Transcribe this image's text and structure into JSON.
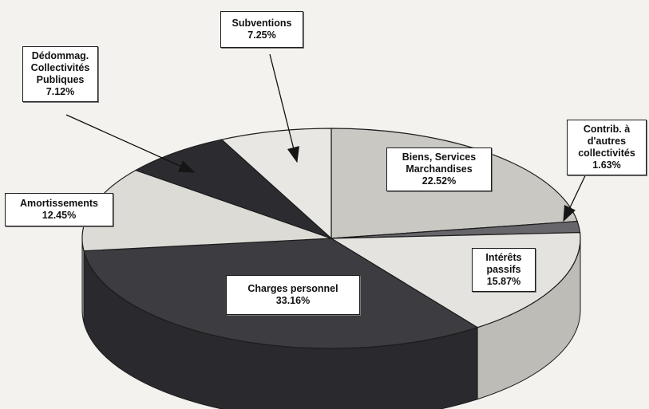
{
  "chart_data": {
    "type": "pie",
    "slices": [
      {
        "name_lines": [
          "Biens, Services",
          "Marchandises"
        ],
        "value": 22.52,
        "value_label": "22.52%",
        "color": "#c9c8c3",
        "side_color": "#9d9c97"
      },
      {
        "name_lines": [
          "Contrib. à",
          "d'autres",
          "collectivités"
        ],
        "value": 1.63,
        "value_label": "1.63%",
        "color": "#67666a",
        "side_color": "#4a494d"
      },
      {
        "name_lines": [
          "Intérêts",
          "passifs"
        ],
        "value": 15.87,
        "value_label": "15.87%",
        "color": "#e4e3df",
        "side_color": "#bdbcb7"
      },
      {
        "name_lines": [
          "Charges personnel"
        ],
        "value": 33.16,
        "value_label": "33.16%",
        "color": "#3d3c41",
        "side_color": "#2a292d"
      },
      {
        "name_lines": [
          "Amortissements"
        ],
        "value": 12.45,
        "value_label": "12.45%",
        "color": "#dcdbd6",
        "side_color": "#b3b2ad"
      },
      {
        "name_lines": [
          "Dédommag.",
          "Collectivités",
          "Publiques"
        ],
        "value": 7.12,
        "value_label": "7.12%",
        "color": "#2c2b30",
        "side_color": "#1f1e22"
      },
      {
        "name_lines": [
          "Subventions"
        ],
        "value": 7.25,
        "value_label": "7.25%",
        "color": "#e8e7e3",
        "side_color": "#c2c1bc"
      }
    ]
  }
}
